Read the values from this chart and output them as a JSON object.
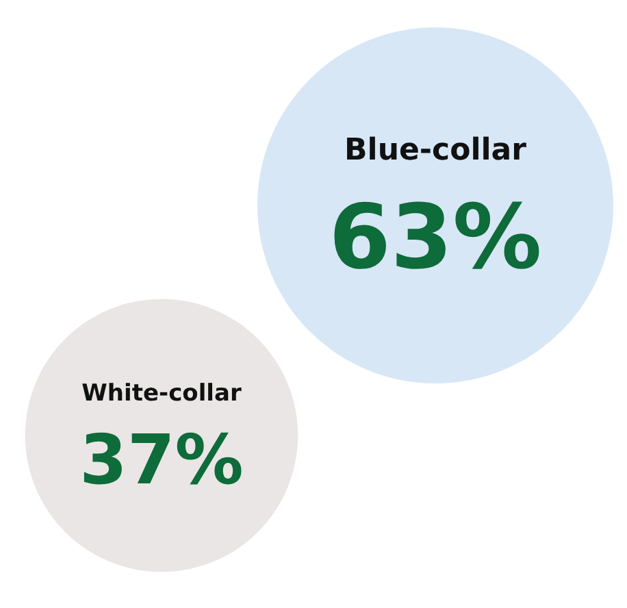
{
  "chart_data": {
    "type": "other",
    "categories": [
      "White-collar",
      "Blue-collar"
    ],
    "values": [
      37,
      63
    ],
    "colors": [
      "#e9e6e5",
      "#d7e7f6"
    ],
    "value_labels": [
      "37%",
      "63%"
    ]
  }
}
